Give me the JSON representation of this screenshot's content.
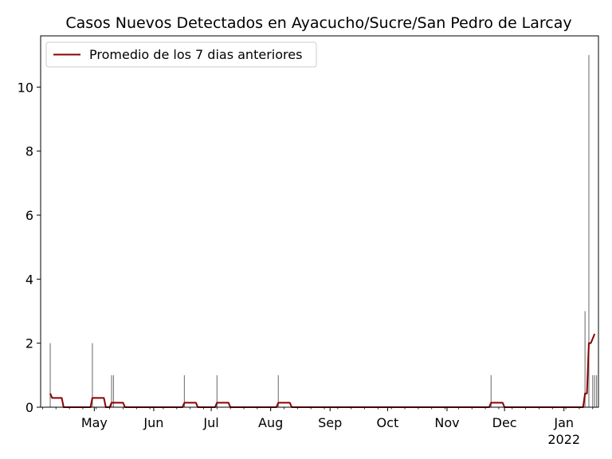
{
  "chart_data": {
    "type": "bar",
    "title": "Casos Nuevos Detectados en Ayacucho/Sucre/San Pedro de Larcay",
    "xlabel": "",
    "ylabel": "",
    "x_range": [
      "2021-04-03",
      "2022-01-19"
    ],
    "ylim": [
      0,
      11.6
    ],
    "y_ticks": [
      0,
      2,
      4,
      6,
      8,
      10
    ],
    "x_ticks": [
      {
        "date": "2021-05-01",
        "label": "May",
        "sublabel": ""
      },
      {
        "date": "2021-06-01",
        "label": "Jun",
        "sublabel": ""
      },
      {
        "date": "2021-07-01",
        "label": "Jul",
        "sublabel": ""
      },
      {
        "date": "2021-08-01",
        "label": "Aug",
        "sublabel": ""
      },
      {
        "date": "2021-09-01",
        "label": "Sep",
        "sublabel": ""
      },
      {
        "date": "2021-10-01",
        "label": "Oct",
        "sublabel": ""
      },
      {
        "date": "2021-11-01",
        "label": "Nov",
        "sublabel": ""
      },
      {
        "date": "2021-12-01",
        "label": "Dec",
        "sublabel": ""
      },
      {
        "date": "2022-01-01",
        "label": "Jan",
        "sublabel": "2022"
      }
    ],
    "grid": false,
    "legend_position": "top-left",
    "colors": {
      "bars": "#808080",
      "line": "#8b0000"
    },
    "bars": [
      {
        "date": "2021-04-08",
        "value": 2
      },
      {
        "date": "2021-04-30",
        "value": 2
      },
      {
        "date": "2021-05-10",
        "value": 1
      },
      {
        "date": "2021-05-11",
        "value": 1
      },
      {
        "date": "2021-06-17",
        "value": 1
      },
      {
        "date": "2021-07-04",
        "value": 1
      },
      {
        "date": "2021-08-05",
        "value": 1
      },
      {
        "date": "2021-11-24",
        "value": 1
      },
      {
        "date": "2022-01-12",
        "value": 3
      },
      {
        "date": "2022-01-14",
        "value": 11
      },
      {
        "date": "2022-01-16",
        "value": 1
      },
      {
        "date": "2022-01-17",
        "value": 1
      },
      {
        "date": "2022-01-18",
        "value": 1
      }
    ],
    "series": [
      {
        "name": "Promedio de los 7 dias anteriores",
        "points": [
          {
            "date": "2021-04-08",
            "value": 0.43
          },
          {
            "date": "2021-04-09",
            "value": 0.29
          },
          {
            "date": "2021-04-14",
            "value": 0.29
          },
          {
            "date": "2021-04-15",
            "value": 0.0
          },
          {
            "date": "2021-04-29",
            "value": 0.0
          },
          {
            "date": "2021-04-30",
            "value": 0.29
          },
          {
            "date": "2021-05-06",
            "value": 0.29
          },
          {
            "date": "2021-05-07",
            "value": 0.0
          },
          {
            "date": "2021-05-09",
            "value": 0.0
          },
          {
            "date": "2021-05-10",
            "value": 0.14
          },
          {
            "date": "2021-05-16",
            "value": 0.14
          },
          {
            "date": "2021-05-17",
            "value": 0.0
          },
          {
            "date": "2021-06-16",
            "value": 0.0
          },
          {
            "date": "2021-06-17",
            "value": 0.14
          },
          {
            "date": "2021-06-23",
            "value": 0.14
          },
          {
            "date": "2021-06-24",
            "value": 0.0
          },
          {
            "date": "2021-07-03",
            "value": 0.0
          },
          {
            "date": "2021-07-04",
            "value": 0.14
          },
          {
            "date": "2021-07-10",
            "value": 0.14
          },
          {
            "date": "2021-07-11",
            "value": 0.0
          },
          {
            "date": "2021-08-04",
            "value": 0.0
          },
          {
            "date": "2021-08-05",
            "value": 0.14
          },
          {
            "date": "2021-08-11",
            "value": 0.14
          },
          {
            "date": "2021-08-12",
            "value": 0.0
          },
          {
            "date": "2021-11-23",
            "value": 0.0
          },
          {
            "date": "2021-11-24",
            "value": 0.14
          },
          {
            "date": "2021-11-30",
            "value": 0.14
          },
          {
            "date": "2021-12-01",
            "value": 0.0
          },
          {
            "date": "2022-01-11",
            "value": 0.0
          },
          {
            "date": "2022-01-12",
            "value": 0.43
          },
          {
            "date": "2022-01-13",
            "value": 0.43
          },
          {
            "date": "2022-01-14",
            "value": 2.0
          },
          {
            "date": "2022-01-15",
            "value": 2.0
          },
          {
            "date": "2022-01-16",
            "value": 2.14
          },
          {
            "date": "2022-01-17",
            "value": 2.29
          }
        ]
      }
    ]
  }
}
